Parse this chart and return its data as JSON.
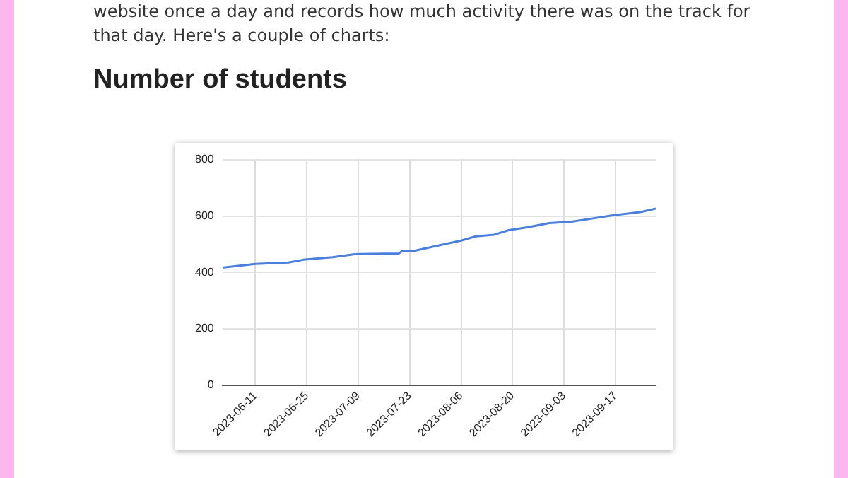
{
  "chart_data": {
    "type": "line",
    "title": "Number of students",
    "annotations": [
      "website once a day and records how much activity there was on the track for that day. Here's a couple of charts:"
    ],
    "x": [
      "2023-06-02",
      "2023-06-11",
      "2023-06-20",
      "2023-06-24",
      "2023-07-02",
      "2023-07-08",
      "2023-07-20",
      "2023-07-21",
      "2023-07-24",
      "2023-07-31",
      "2023-08-06",
      "2023-08-10",
      "2023-08-15",
      "2023-08-19",
      "2023-08-24",
      "2023-08-30",
      "2023-09-05",
      "2023-09-10",
      "2023-09-16",
      "2023-09-24",
      "2023-09-28"
    ],
    "series": [
      {
        "color": "#4a7fdc",
        "values": [
          417,
          430,
          435,
          445,
          454,
          465,
          467,
          476,
          476,
          496,
          513,
          528,
          534,
          550,
          560,
          575,
          580,
          590,
          602,
          615,
          627
        ]
      }
    ],
    "xlim": [
      "2023-06-02",
      "2023-09-28"
    ],
    "xticks": [
      "2023-06-11",
      "2023-06-25",
      "2023-07-09",
      "2023-07-23",
      "2023-08-06",
      "2023-08-20",
      "2023-09-03",
      "2023-09-17"
    ],
    "ylim": [
      0,
      800
    ],
    "yticks": [
      0,
      200,
      400,
      600,
      800
    ],
    "grid": true,
    "legend": false,
    "marker": "none",
    "line_style": "solid"
  }
}
